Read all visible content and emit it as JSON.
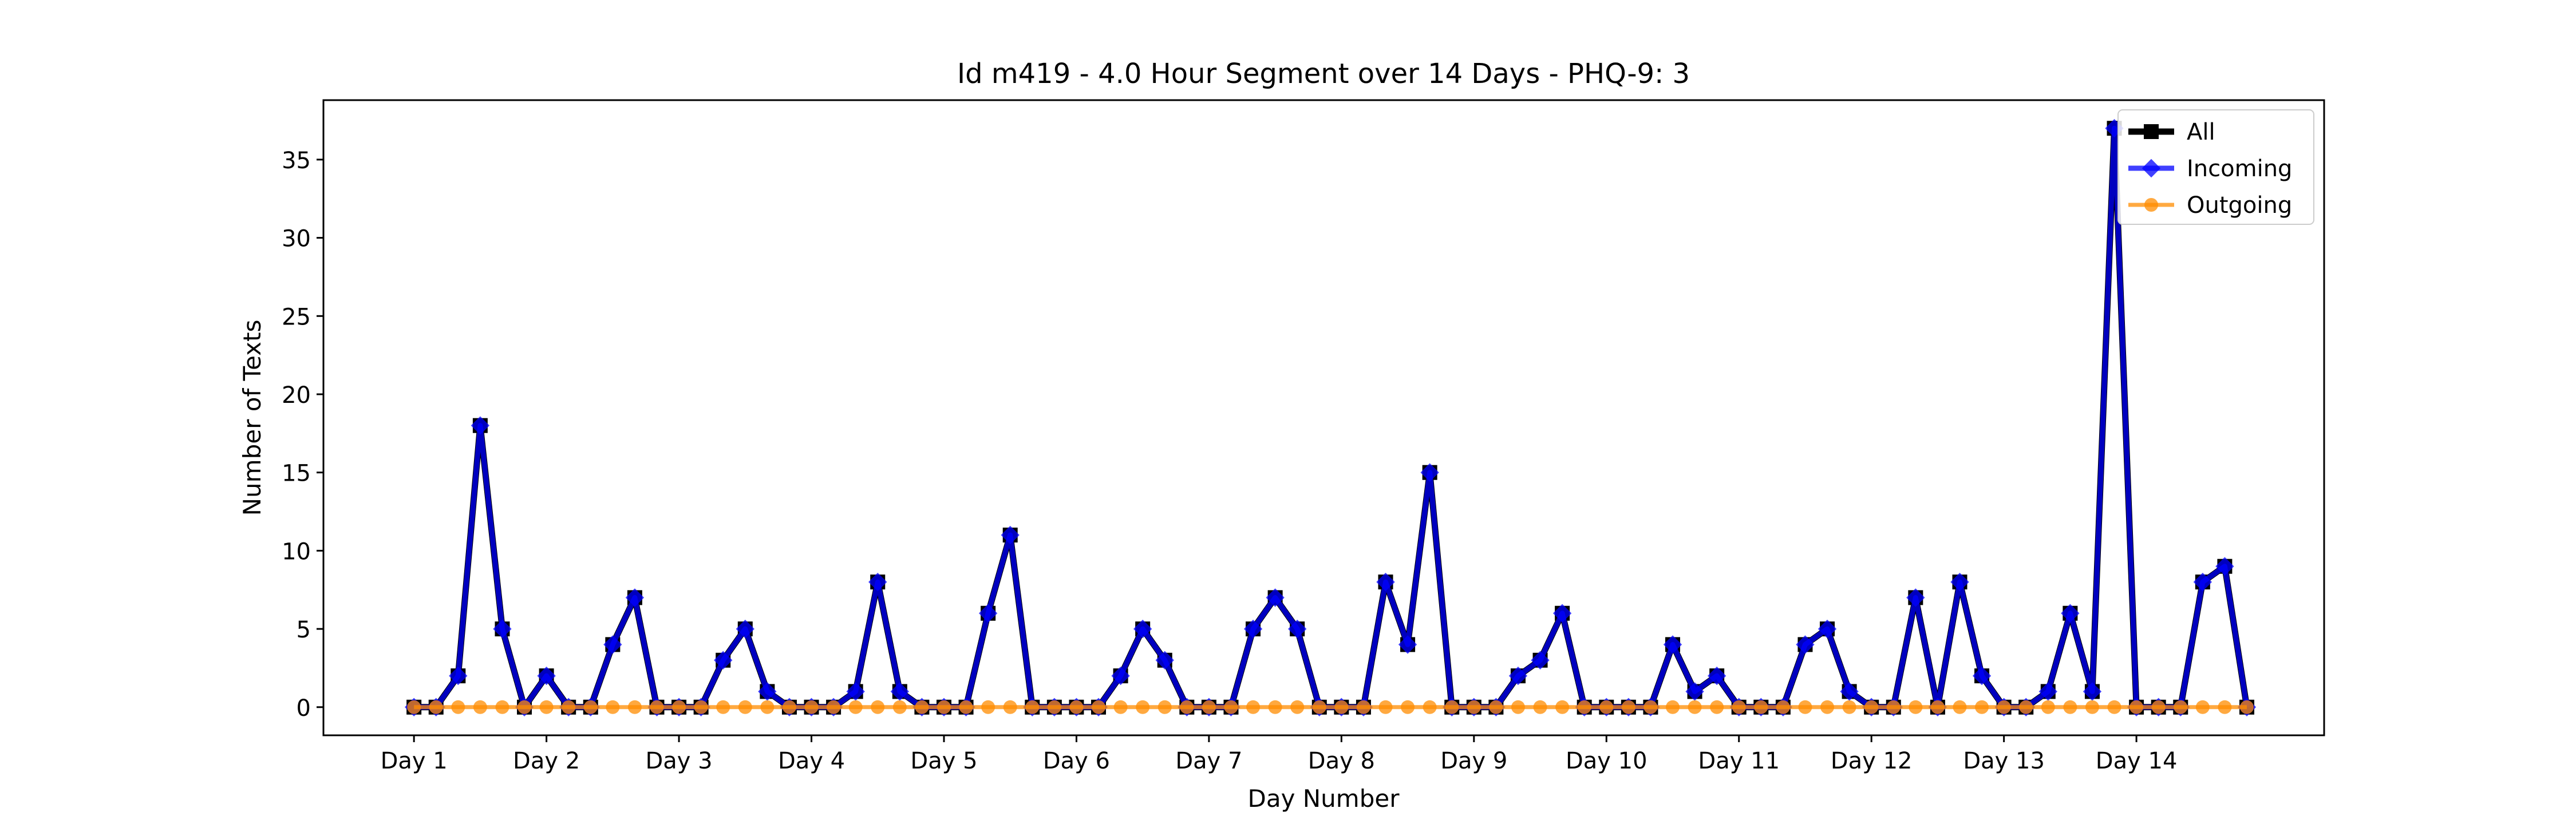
{
  "chart_data": {
    "type": "line",
    "title": "Id m419 - 4.0 Hour Segment over 14 Days - PHQ-9: 3",
    "xlabel": "Day Number",
    "ylabel": "Number of Texts",
    "ylim": [
      -1.8,
      38.8
    ],
    "xlim": [
      -4.1,
      86.5
    ],
    "ytick_values": [
      0,
      5,
      10,
      15,
      20,
      25,
      30,
      35
    ],
    "xticks": [
      {
        "x": 0,
        "label": "Day 1"
      },
      {
        "x": 6,
        "label": "Day 2"
      },
      {
        "x": 12,
        "label": "Day 3"
      },
      {
        "x": 18,
        "label": "Day 4"
      },
      {
        "x": 24,
        "label": "Day 5"
      },
      {
        "x": 30,
        "label": "Day 6"
      },
      {
        "x": 36,
        "label": "Day 7"
      },
      {
        "x": 42,
        "label": "Day 8"
      },
      {
        "x": 48,
        "label": "Day 9"
      },
      {
        "x": 54,
        "label": "Day 10"
      },
      {
        "x": 60,
        "label": "Day 11"
      },
      {
        "x": 66,
        "label": "Day 12"
      },
      {
        "x": 72,
        "label": "Day 13"
      },
      {
        "x": 78,
        "label": "Day 14"
      }
    ],
    "grid": false,
    "legend_position": "top-right",
    "series": [
      {
        "name": "All",
        "color": "#000000",
        "marker": "square",
        "values": [
          0,
          0,
          2,
          18,
          5,
          0,
          2,
          0,
          0,
          4,
          7,
          0,
          0,
          0,
          3,
          5,
          1,
          0,
          0,
          0,
          1,
          8,
          1,
          0,
          0,
          0,
          6,
          11,
          0,
          0,
          0,
          0,
          2,
          5,
          3,
          0,
          0,
          0,
          5,
          7,
          5,
          0,
          0,
          0,
          8,
          4,
          15,
          0,
          0,
          0,
          2,
          3,
          6,
          0,
          0,
          0,
          0,
          4,
          1,
          2,
          0,
          0,
          0,
          4,
          5,
          1,
          0,
          0,
          7,
          0,
          8,
          2,
          0,
          0,
          1,
          6,
          1,
          37,
          0,
          0,
          0,
          8,
          9,
          0
        ]
      },
      {
        "name": "Incoming",
        "color": "#0000ff",
        "marker": "diamond",
        "values": [
          0,
          0,
          2,
          18,
          5,
          0,
          2,
          0,
          0,
          4,
          7,
          0,
          0,
          0,
          3,
          5,
          1,
          0,
          0,
          0,
          1,
          8,
          1,
          0,
          0,
          0,
          6,
          11,
          0,
          0,
          0,
          0,
          2,
          5,
          3,
          0,
          0,
          0,
          5,
          7,
          5,
          0,
          0,
          0,
          8,
          4,
          15,
          0,
          0,
          0,
          2,
          3,
          6,
          0,
          0,
          0,
          0,
          4,
          1,
          2,
          0,
          0,
          0,
          4,
          5,
          1,
          0,
          0,
          7,
          0,
          8,
          2,
          0,
          0,
          1,
          6,
          1,
          37,
          0,
          0,
          0,
          8,
          9,
          0
        ]
      },
      {
        "name": "Outgoing",
        "color": "#ff8c00",
        "marker": "circle",
        "values": [
          0,
          0,
          0,
          0,
          0,
          0,
          0,
          0,
          0,
          0,
          0,
          0,
          0,
          0,
          0,
          0,
          0,
          0,
          0,
          0,
          0,
          0,
          0,
          0,
          0,
          0,
          0,
          0,
          0,
          0,
          0,
          0,
          0,
          0,
          0,
          0,
          0,
          0,
          0,
          0,
          0,
          0,
          0,
          0,
          0,
          0,
          0,
          0,
          0,
          0,
          0,
          0,
          0,
          0,
          0,
          0,
          0,
          0,
          0,
          0,
          0,
          0,
          0,
          0,
          0,
          0,
          0,
          0,
          0,
          0,
          0,
          0,
          0,
          0,
          0,
          0,
          0,
          0,
          0,
          0,
          0,
          0,
          0,
          0
        ]
      }
    ]
  }
}
